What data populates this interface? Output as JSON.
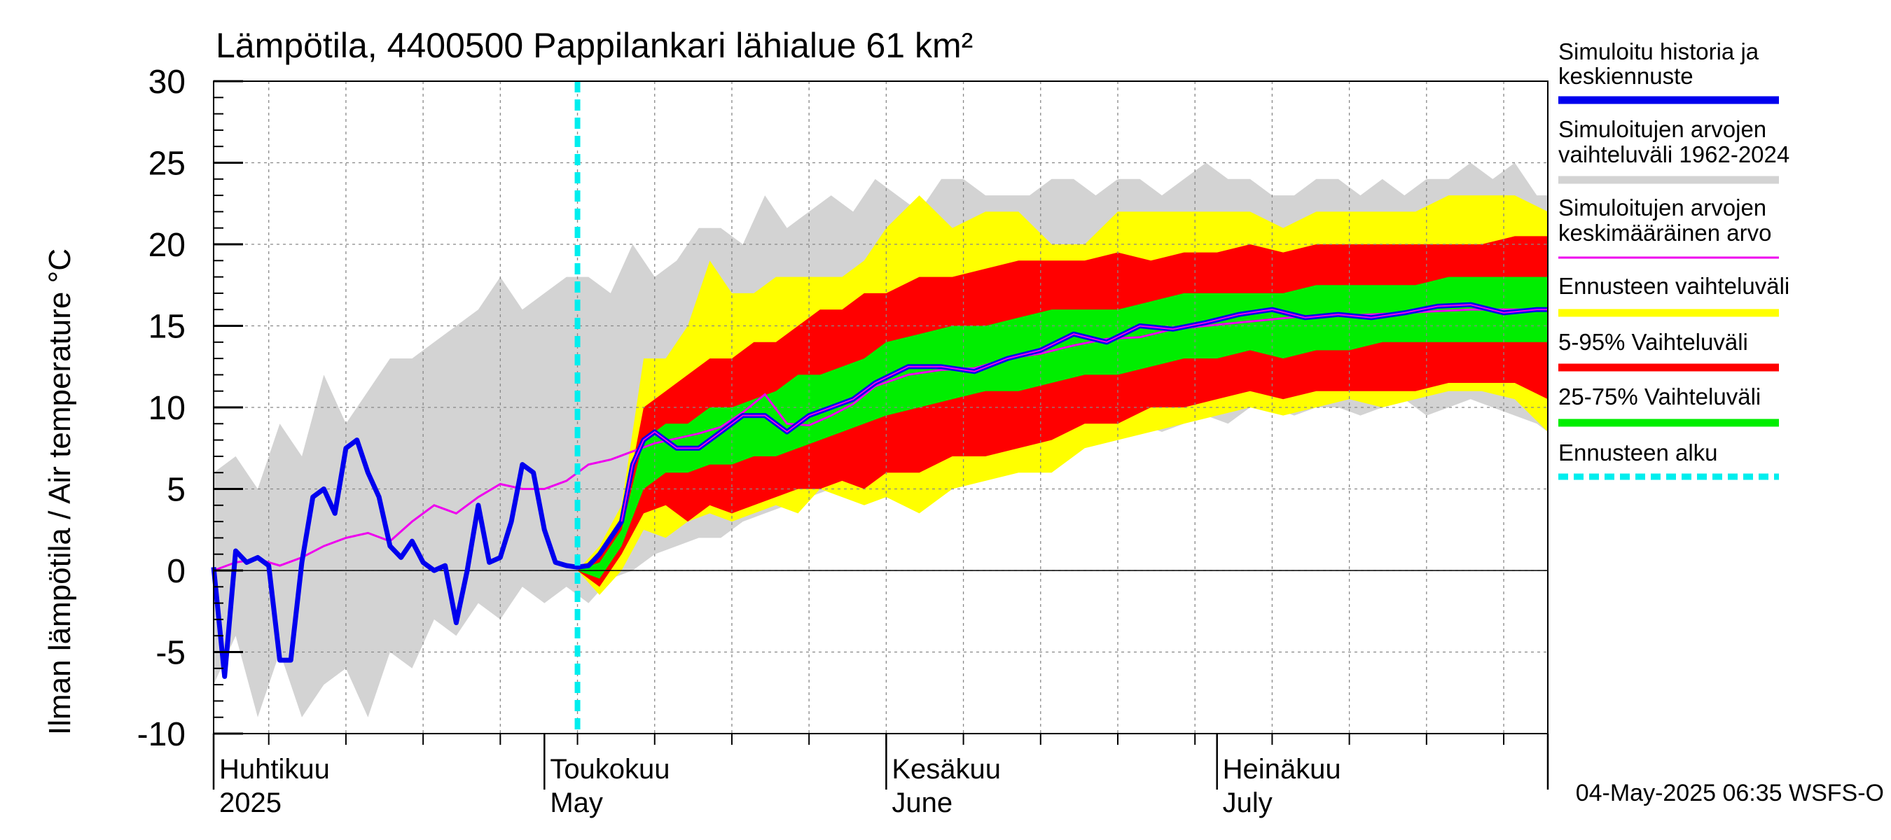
{
  "chart_data": {
    "type": "line",
    "title": "Lämpötila, 4400500 Pappilankari lähialue 61 km²",
    "ylabel": "Ilman lämpötila / Air temperature   °C",
    "ylim": [
      -10,
      30
    ],
    "yticks": [
      -10,
      -5,
      0,
      5,
      10,
      15,
      20,
      25,
      30
    ],
    "xlim": [
      "2025-04-01",
      "2025-07-31"
    ],
    "forecast_start": "2025-05-04",
    "x_axis_labels": [
      {
        "fi": "Huhtikuu",
        "en": "2025",
        "date": "2025-04-01"
      },
      {
        "fi": "Toukokuu",
        "en": "May",
        "date": "2025-05-01"
      },
      {
        "fi": "Kesäkuu",
        "en": "June",
        "date": "2025-06-01"
      },
      {
        "fi": "Heinäkuu",
        "en": "July",
        "date": "2025-07-01"
      }
    ],
    "timestamp": "04-May-2025 06:35 WSFS-O",
    "legend": {
      "placement": "right",
      "entries": [
        {
          "label1": "Simuloitu historia ja",
          "label2": "keskiennuste",
          "color": "#0000ee",
          "style": "thick-line"
        },
        {
          "label1": "Simuloitujen arvojen",
          "label2": "vaihteluväli 1962-2024",
          "color": "#d3d3d3",
          "style": "thick-line"
        },
        {
          "label1": "Simuloitujen arvojen",
          "label2": "keskimääräinen arvo",
          "color": "#ee00ee",
          "style": "thin-line"
        },
        {
          "label1": "Ennusteen vaihteluväli",
          "label2": "",
          "color": "#ffff00",
          "style": "thick-line"
        },
        {
          "label1": "5-95% Vaihteluväli",
          "label2": "",
          "color": "#ff0000",
          "style": "thick-line"
        },
        {
          "label1": "25-75% Vaihteluväli",
          "label2": "",
          "color": "#00ee00",
          "style": "thick-line"
        },
        {
          "label1": "Ennusteen alku",
          "label2": "",
          "color": "#00eeee",
          "style": "dashed"
        }
      ]
    },
    "series": [
      {
        "key": "history_range",
        "x": [
          "2025-04-01",
          "2025-04-03",
          "2025-04-05",
          "2025-04-07",
          "2025-04-09",
          "2025-04-11",
          "2025-04-13",
          "2025-04-15",
          "2025-04-17",
          "2025-04-19",
          "2025-04-21",
          "2025-04-23",
          "2025-04-25",
          "2025-04-27",
          "2025-04-29",
          "2025-05-01",
          "2025-05-03",
          "2025-05-05",
          "2025-05-07",
          "2025-05-09",
          "2025-05-11",
          "2025-05-13",
          "2025-05-15",
          "2025-05-17",
          "2025-05-19",
          "2025-05-21",
          "2025-05-23",
          "2025-05-25",
          "2025-05-27",
          "2025-05-29",
          "2025-05-31",
          "2025-06-02",
          "2025-06-04",
          "2025-06-06",
          "2025-06-08",
          "2025-06-10",
          "2025-06-12",
          "2025-06-14",
          "2025-06-16",
          "2025-06-18",
          "2025-06-20",
          "2025-06-22",
          "2025-06-24",
          "2025-06-26",
          "2025-06-28",
          "2025-06-30",
          "2025-07-02",
          "2025-07-04",
          "2025-07-06",
          "2025-07-08",
          "2025-07-10",
          "2025-07-12",
          "2025-07-14",
          "2025-07-16",
          "2025-07-18",
          "2025-07-20",
          "2025-07-22",
          "2025-07-24",
          "2025-07-26",
          "2025-07-28",
          "2025-07-30",
          "2025-07-31"
        ],
        "lower": [
          -7,
          -4,
          -9,
          -5,
          -9,
          -7,
          -6,
          -9,
          -5,
          -6,
          -3,
          -4,
          -2,
          -3,
          -1,
          -2,
          -1,
          -2,
          -0.5,
          0,
          1,
          1.5,
          2,
          2,
          3,
          3.5,
          4,
          4.5,
          5,
          6,
          6.5,
          6,
          6.5,
          7,
          8,
          8,
          8.5,
          7.5,
          8,
          8,
          8.5,
          9,
          9,
          8.5,
          9,
          9.5,
          9,
          10,
          10,
          9.5,
          10,
          10,
          9.5,
          10,
          10.5,
          9.5,
          10,
          10.5,
          10,
          9.5,
          9,
          8.5
        ],
        "upper": [
          6,
          7,
          5,
          9,
          7,
          12,
          9,
          11,
          13,
          13,
          14,
          15,
          16,
          18,
          16,
          17,
          18,
          18,
          17,
          20,
          18,
          19,
          21,
          21,
          20,
          23,
          21,
          22,
          23,
          22,
          24,
          23,
          22,
          24,
          24,
          23,
          23,
          23,
          24,
          24,
          23,
          24,
          24,
          23,
          24,
          25,
          24,
          24,
          23,
          23,
          24,
          24,
          23,
          24,
          23,
          24,
          24,
          25,
          24,
          25,
          23,
          23
        ]
      },
      {
        "key": "forecast_range",
        "x": [
          "2025-05-04",
          "2025-05-06",
          "2025-05-08",
          "2025-05-10",
          "2025-05-12",
          "2025-05-14",
          "2025-05-16",
          "2025-05-18",
          "2025-05-20",
          "2025-05-22",
          "2025-05-24",
          "2025-05-26",
          "2025-05-28",
          "2025-05-30",
          "2025-06-01",
          "2025-06-04",
          "2025-06-07",
          "2025-06-10",
          "2025-06-13",
          "2025-06-16",
          "2025-06-19",
          "2025-06-22",
          "2025-06-25",
          "2025-06-28",
          "2025-07-01",
          "2025-07-04",
          "2025-07-07",
          "2025-07-10",
          "2025-07-13",
          "2025-07-16",
          "2025-07-19",
          "2025-07-22",
          "2025-07-25",
          "2025-07-28",
          "2025-07-31"
        ],
        "lower": [
          0,
          -1.5,
          0,
          2.5,
          2,
          3,
          3.5,
          3,
          3.5,
          4,
          3.5,
          5,
          4.5,
          4,
          4.5,
          3.5,
          5,
          5.5,
          6,
          6,
          7.5,
          8,
          8.5,
          9,
          9.5,
          10,
          9.5,
          10,
          10.5,
          10,
          10.5,
          11,
          11,
          10.5,
          8.5
        ],
        "upper": [
          0,
          1.5,
          4,
          13,
          13,
          15,
          19,
          17,
          17,
          18,
          18,
          18,
          18,
          19,
          21,
          23,
          21,
          22,
          22,
          20,
          20,
          22,
          22,
          22,
          22,
          22,
          21,
          22,
          22,
          22,
          22,
          23,
          23,
          23,
          22
        ]
      },
      {
        "key": "p5_95",
        "x": [
          "2025-05-04",
          "2025-05-06",
          "2025-05-08",
          "2025-05-10",
          "2025-05-12",
          "2025-05-14",
          "2025-05-16",
          "2025-05-18",
          "2025-05-20",
          "2025-05-22",
          "2025-05-24",
          "2025-05-26",
          "2025-05-28",
          "2025-05-30",
          "2025-06-01",
          "2025-06-04",
          "2025-06-07",
          "2025-06-10",
          "2025-06-13",
          "2025-06-16",
          "2025-06-19",
          "2025-06-22",
          "2025-06-25",
          "2025-06-28",
          "2025-07-01",
          "2025-07-04",
          "2025-07-07",
          "2025-07-10",
          "2025-07-13",
          "2025-07-16",
          "2025-07-19",
          "2025-07-22",
          "2025-07-25",
          "2025-07-28",
          "2025-07-31"
        ],
        "lower": [
          0,
          -1,
          1,
          3.5,
          4,
          3,
          4,
          3.5,
          4,
          4.5,
          5,
          5,
          5.5,
          5,
          6,
          6,
          7,
          7,
          7.5,
          8,
          9,
          9,
          10,
          10,
          10.5,
          11,
          10.5,
          11,
          11,
          11,
          11,
          11.5,
          11.5,
          11.5,
          10.5
        ],
        "upper": [
          0,
          1,
          3,
          10,
          11,
          12,
          13,
          13,
          14,
          14,
          15,
          16,
          16,
          17,
          17,
          18,
          18,
          18.5,
          19,
          19,
          19,
          19.5,
          19,
          19.5,
          19.5,
          20,
          19.5,
          20,
          20,
          20,
          20,
          20,
          20,
          20.5,
          20.5
        ]
      },
      {
        "key": "p25_75",
        "x": [
          "2025-05-04",
          "2025-05-06",
          "2025-05-08",
          "2025-05-10",
          "2025-05-12",
          "2025-05-14",
          "2025-05-16",
          "2025-05-18",
          "2025-05-20",
          "2025-05-22",
          "2025-05-24",
          "2025-05-26",
          "2025-05-28",
          "2025-05-30",
          "2025-06-01",
          "2025-06-04",
          "2025-06-07",
          "2025-06-10",
          "2025-06-13",
          "2025-06-16",
          "2025-06-19",
          "2025-06-22",
          "2025-06-25",
          "2025-06-28",
          "2025-07-01",
          "2025-07-04",
          "2025-07-07",
          "2025-07-10",
          "2025-07-13",
          "2025-07-16",
          "2025-07-19",
          "2025-07-22",
          "2025-07-25",
          "2025-07-28",
          "2025-07-31"
        ],
        "lower": [
          0,
          -0.5,
          1.5,
          5,
          6,
          6,
          6.5,
          6.5,
          7,
          7,
          7.5,
          8,
          8.5,
          9,
          9.5,
          10,
          10.5,
          11,
          11,
          11.5,
          12,
          12,
          12.5,
          13,
          13,
          13.5,
          13,
          13.5,
          13.5,
          14,
          14,
          14,
          14,
          14,
          14
        ],
        "upper": [
          0,
          0.5,
          2.5,
          8,
          9,
          9,
          10,
          10,
          10.5,
          11,
          12,
          12,
          12.5,
          13,
          14,
          14.5,
          15,
          15,
          15.5,
          16,
          16,
          16,
          16.5,
          17,
          17,
          17,
          17,
          17.5,
          17.5,
          17.5,
          17.5,
          18,
          18,
          18,
          18
        ]
      },
      {
        "key": "history_mean",
        "name": "Simuloitujen arvojen keskimääräinen arvo",
        "x": [
          "2025-04-01",
          "2025-04-03",
          "2025-04-05",
          "2025-04-07",
          "2025-04-09",
          "2025-04-11",
          "2025-04-13",
          "2025-04-15",
          "2025-04-17",
          "2025-04-19",
          "2025-04-21",
          "2025-04-23",
          "2025-04-25",
          "2025-04-27",
          "2025-04-29",
          "2025-05-01",
          "2025-05-03",
          "2025-05-05",
          "2025-05-07",
          "2025-05-09",
          "2025-05-11",
          "2025-05-13",
          "2025-05-15",
          "2025-05-17",
          "2025-05-19",
          "2025-05-21",
          "2025-05-23",
          "2025-05-25",
          "2025-05-27",
          "2025-05-29",
          "2025-05-31",
          "2025-06-03",
          "2025-06-06",
          "2025-06-09",
          "2025-06-12",
          "2025-06-15",
          "2025-06-18",
          "2025-06-21",
          "2025-06-24",
          "2025-06-27",
          "2025-06-30",
          "2025-07-03",
          "2025-07-06",
          "2025-07-09",
          "2025-07-12",
          "2025-07-15",
          "2025-07-18",
          "2025-07-21",
          "2025-07-24",
          "2025-07-27",
          "2025-07-30",
          "2025-07-31"
        ],
        "values": [
          0,
          0.5,
          0.7,
          0.3,
          0.8,
          1.5,
          2,
          2.3,
          1.8,
          3,
          4,
          3.5,
          4.5,
          5.3,
          5,
          5,
          5.5,
          6.5,
          6.8,
          7.3,
          7.8,
          8.1,
          8.4,
          8.8,
          9.7,
          10.8,
          9,
          8.9,
          9.5,
          10.2,
          11.3,
          12,
          12.3,
          12.4,
          13,
          13.3,
          13.8,
          14.2,
          14.3,
          14.8,
          15,
          15.2,
          15.4,
          15.6,
          15.6,
          15.7,
          15.8,
          15.9,
          16,
          16,
          16,
          16
        ]
      },
      {
        "key": "simulated",
        "name": "Simuloitu historia ja keskiennuste",
        "x": [
          "2025-04-01",
          "2025-04-02",
          "2025-04-03",
          "2025-04-04",
          "2025-04-05",
          "2025-04-06",
          "2025-04-07",
          "2025-04-08",
          "2025-04-09",
          "2025-04-10",
          "2025-04-11",
          "2025-04-12",
          "2025-04-13",
          "2025-04-14",
          "2025-04-15",
          "2025-04-16",
          "2025-04-17",
          "2025-04-18",
          "2025-04-19",
          "2025-04-20",
          "2025-04-21",
          "2025-04-22",
          "2025-04-23",
          "2025-04-24",
          "2025-04-25",
          "2025-04-26",
          "2025-04-27",
          "2025-04-28",
          "2025-04-29",
          "2025-04-30",
          "2025-05-01",
          "2025-05-02",
          "2025-05-03",
          "2025-05-04",
          "2025-05-05",
          "2025-05-06",
          "2025-05-07",
          "2025-05-08",
          "2025-05-09",
          "2025-05-10",
          "2025-05-11",
          "2025-05-13",
          "2025-05-15",
          "2025-05-17",
          "2025-05-19",
          "2025-05-21",
          "2025-05-23",
          "2025-05-25",
          "2025-05-27",
          "2025-05-29",
          "2025-05-31",
          "2025-06-03",
          "2025-06-06",
          "2025-06-09",
          "2025-06-12",
          "2025-06-15",
          "2025-06-18",
          "2025-06-21",
          "2025-06-24",
          "2025-06-27",
          "2025-06-30",
          "2025-07-03",
          "2025-07-06",
          "2025-07-09",
          "2025-07-12",
          "2025-07-15",
          "2025-07-18",
          "2025-07-21",
          "2025-07-24",
          "2025-07-27",
          "2025-07-30",
          "2025-07-31"
        ],
        "values": [
          0.2,
          -6.5,
          1.2,
          0.5,
          0.8,
          0.3,
          -5.5,
          -5.5,
          0.5,
          4.5,
          5,
          3.5,
          7.5,
          8,
          6,
          4.5,
          1.5,
          0.8,
          1.8,
          0.5,
          0,
          0.3,
          -3.2,
          0,
          4,
          0.5,
          0.8,
          3,
          6.5,
          6,
          2.5,
          0.5,
          0.3,
          0.2,
          0.3,
          1,
          2,
          3,
          6.5,
          8,
          8.5,
          7.5,
          7.5,
          8.5,
          9.5,
          9.5,
          8.5,
          9.5,
          10,
          10.5,
          11.5,
          12.5,
          12.5,
          12.2,
          13,
          13.5,
          14.5,
          14,
          15,
          14.8,
          15.2,
          15.7,
          16,
          15.5,
          15.7,
          15.5,
          15.8,
          16.2,
          16.3,
          15.8,
          16,
          16
        ]
      }
    ]
  }
}
